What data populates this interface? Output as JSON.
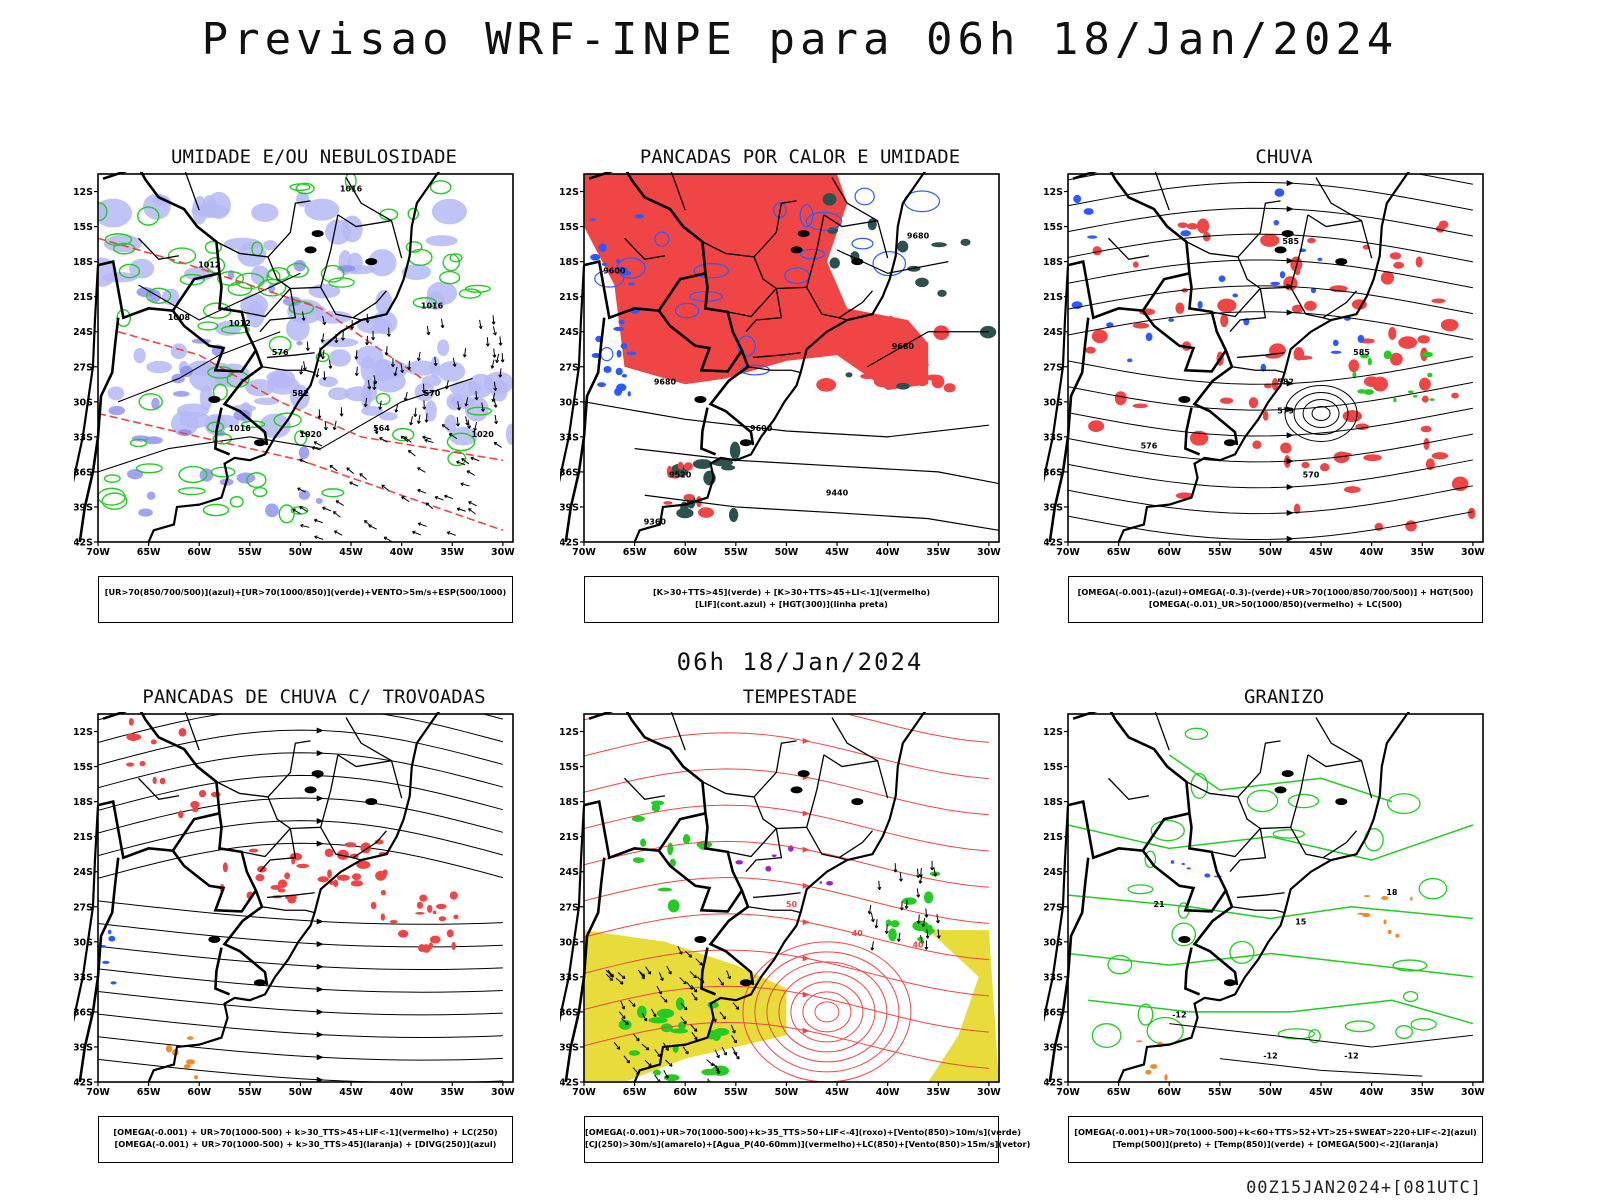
{
  "header": {
    "title": "Previsao WRF-INPE  para 06h 18/Jan/2024",
    "mid_title": "06h 18/Jan/2024",
    "footer": "00Z15JAN2024+[081UTC]"
  },
  "axes": {
    "lat_labels": [
      "12S",
      "15S",
      "18S",
      "21S",
      "24S",
      "27S",
      "30S",
      "33S",
      "36S",
      "39S",
      "42S"
    ],
    "lon_labels": [
      "70W",
      "65W",
      "60W",
      "55W",
      "50W",
      "45W",
      "40W",
      "35W",
      "30W"
    ]
  },
  "colors": {
    "blue": "#2b5bff",
    "green": "#22cc22",
    "red": "#f04545",
    "lavender": "#b5b8f5",
    "dark_teal": "#2d5050",
    "yellow": "#e8dc3a",
    "orange": "#f08c28",
    "purple": "#a020c8"
  },
  "panels": [
    {
      "title": "UMIDADE E/OU NEBULOSIDADE",
      "caption": [
        "[UR>70(850/700/500)](azul)+[UR>70(1000/850)](verde)+VENTO>5m/s+ESP(500/1000)"
      ],
      "labels": [
        "1016",
        "1012",
        "1008",
        "1012",
        "1016",
        "1020",
        "576",
        "582",
        "570",
        "564",
        "1016",
        "1020"
      ]
    },
    {
      "title": "PANCADAS POR CALOR E UMIDADE",
      "caption": [
        "[K>30+TTS>45](verde) + [K>30+TTS>45+LI<-1](vermelho)",
        "[LIF](cont.azul) + [HGT(300)](linha preta)"
      ],
      "labels": [
        "9680",
        "9680",
        "9600",
        "9520",
        "9440",
        "9360",
        "9600",
        "9680"
      ]
    },
    {
      "title": "CHUVA",
      "caption": [
        "[OMEGA(-0.001)-(azul)+OMEGA(-0.3)-(verde)+UR>70(1000/850/700/500)] + HGT(500)",
        "[OMEGA(-0.01)_UR>50(1000/850)(vermelho) + LC(500)"
      ],
      "labels": [
        "585",
        "585",
        "582",
        "579",
        "576",
        "570"
      ]
    },
    {
      "title": "PANCADAS DE CHUVA C/ TROVOADAS",
      "caption": [
        "[OMEGA(-0.001) + UR>70(1000-500) + k>30_TTS>45+LIF<-1](vermelho) + LC(250)",
        "[OMEGA(-0.001) + UR>70(1000-500) + k>30_TTS>45](laranja) + [DIVG(250)](azul)"
      ],
      "labels": []
    },
    {
      "title": "TEMPESTADE",
      "caption": [
        "[OMEGA(-0.001)+UR>70(1000-500)+k>35_TTS>50+LIF<-4](roxo)+[Vento(850)>10m/s](verde)",
        "[CJ(250)>30m/s](amarelo)+[Agua_P(40-60mm)](vermelho)+LC(850)+[Vento(850)>15m/s](vetor)"
      ],
      "labels": [
        "40",
        "50",
        "40"
      ]
    },
    {
      "title": "GRANIZO",
      "caption": [
        "[OMEGA(-0.001)+UR>70(1000-500)+k<60+TTS>52+VT>25+SWEAT>220+LIF<-2](azul)",
        "[Temp(500)](preto) + [Temp(850)](verde) + [OMEGA(500)<-2](laranja)"
      ],
      "labels": [
        "-12",
        "-12",
        "-12",
        "18",
        "15",
        "21"
      ]
    }
  ]
}
